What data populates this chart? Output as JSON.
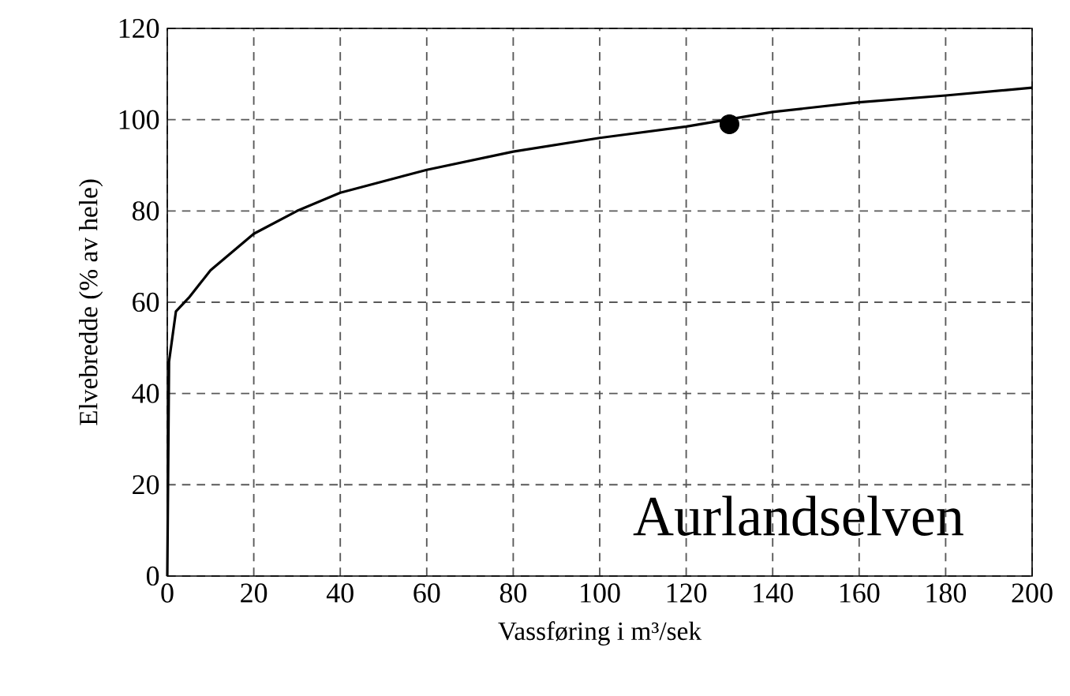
{
  "chart_data": {
    "type": "line",
    "xlabel": "Vassføring i m³/sek",
    "ylabel": "Elvebredde (% av hele)",
    "xlim": [
      0,
      200
    ],
    "ylim": [
      0,
      120
    ],
    "xticks": [
      0,
      20,
      40,
      60,
      80,
      100,
      120,
      140,
      160,
      180,
      200
    ],
    "yticks": [
      0,
      20,
      40,
      60,
      80,
      100,
      120
    ],
    "grid": true,
    "annotations": [
      "Aurlandselven"
    ],
    "series": [
      {
        "color": "#000000",
        "marker": "none",
        "x": [
          0,
          0.4,
          2,
          5,
          10,
          20,
          30,
          40,
          60,
          80,
          100,
          120,
          140,
          160,
          180,
          200
        ],
        "values": [
          0,
          47,
          58,
          61,
          67,
          75,
          80,
          84,
          89,
          93,
          96,
          98.5,
          101.7,
          103.8,
          105.3,
          107
        ]
      },
      {
        "type": "scatter",
        "color": "#000000",
        "marker": "circle",
        "x": [
          130
        ],
        "values": [
          99
        ]
      }
    ]
  }
}
